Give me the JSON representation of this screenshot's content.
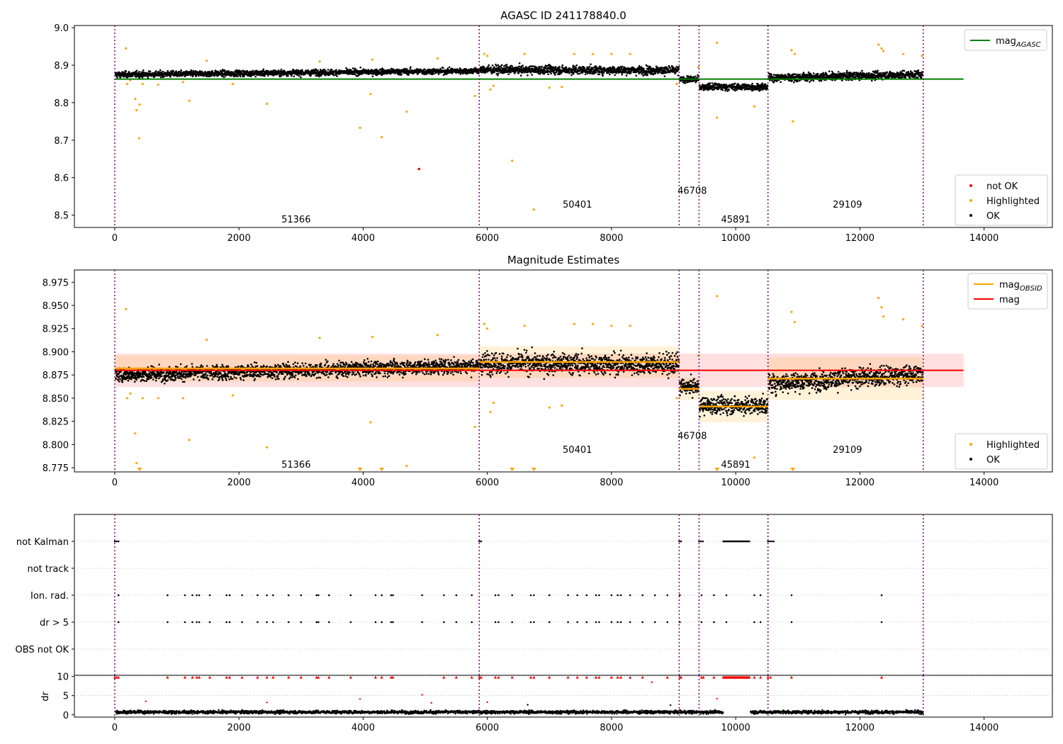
{
  "chart_data": [
    {
      "type": "scatter",
      "title": "AGASC ID 241178840.0",
      "xlabel": "",
      "ylabel": "",
      "xlim": [
        -650,
        15100
      ],
      "ylim": [
        8.467,
        9.006
      ],
      "xticks": [
        0,
        2000,
        4000,
        6000,
        8000,
        10000,
        12000,
        14000
      ],
      "yticks": [
        8.5,
        8.6,
        8.7,
        8.8,
        8.9,
        9.0
      ],
      "ytick_labels": [
        "8.5",
        "8.6",
        "8.7",
        "8.8",
        "8.9",
        "9.0"
      ],
      "obsid_boundaries": [
        0,
        5870,
        9090,
        9410,
        10520,
        13020
      ],
      "obsid_labels": [
        {
          "text": "51366",
          "x": 2920,
          "y": 8.49
        },
        {
          "text": "50401",
          "x": 7450,
          "y": 8.529
        },
        {
          "text": "46708",
          "x": 9300,
          "y": 8.566
        },
        {
          "text": "45891",
          "x": 10000,
          "y": 8.49
        },
        {
          "text": "29109",
          "x": 11800,
          "y": 8.529
        }
      ],
      "horizontal_lines": [
        {
          "name": "mag_AGASC",
          "y": 8.863,
          "x_range": [
            0,
            13670
          ],
          "color": "#008000"
        }
      ],
      "ok_segments": [
        {
          "x": [
            0,
            5870
          ],
          "mean": [
            8.875,
            8.885
          ],
          "spread": 0.012
        },
        {
          "x": [
            5870,
            9090
          ],
          "mean": [
            8.888,
            8.886
          ],
          "spread": 0.017
        },
        {
          "x": [
            9090,
            9410
          ],
          "mean": [
            8.862,
            8.862
          ],
          "spread": 0.013
        },
        {
          "x": [
            9410,
            10520
          ],
          "mean": [
            8.842,
            8.842
          ],
          "spread": 0.014
        },
        {
          "x": [
            10520,
            13020
          ],
          "mean": [
            8.866,
            8.876
          ],
          "spread": 0.016
        }
      ],
      "highlighted_points": [
        [
          180,
          8.945
        ],
        [
          200,
          8.85
        ],
        [
          250,
          8.86
        ],
        [
          330,
          8.81
        ],
        [
          350,
          8.78
        ],
        [
          390,
          8.705
        ],
        [
          400,
          8.795
        ],
        [
          450,
          8.85
        ],
        [
          700,
          8.848
        ],
        [
          1100,
          8.855
        ],
        [
          1200,
          8.805
        ],
        [
          1480,
          8.912
        ],
        [
          1900,
          8.85
        ],
        [
          2450,
          8.797
        ],
        [
          3300,
          8.91
        ],
        [
          3950,
          8.733
        ],
        [
          4120,
          8.823
        ],
        [
          4150,
          8.915
        ],
        [
          4300,
          8.708
        ],
        [
          4700,
          8.776
        ],
        [
          5200,
          8.918
        ],
        [
          5800,
          8.818
        ],
        [
          5950,
          8.93
        ],
        [
          6000,
          8.925
        ],
        [
          6050,
          8.835
        ],
        [
          6100,
          8.845
        ],
        [
          6400,
          8.645
        ],
        [
          6600,
          8.93
        ],
        [
          6750,
          8.515
        ],
        [
          7000,
          8.84
        ],
        [
          7200,
          8.842
        ],
        [
          7400,
          8.93
        ],
        [
          7700,
          8.93
        ],
        [
          8000,
          8.93
        ],
        [
          8300,
          8.93
        ],
        [
          9050,
          8.85
        ],
        [
          9400,
          8.895
        ],
        [
          9700,
          8.96
        ],
        [
          9700,
          8.76
        ],
        [
          10300,
          8.79
        ],
        [
          10900,
          8.94
        ],
        [
          10950,
          8.93
        ],
        [
          10920,
          8.75
        ],
        [
          12300,
          8.955
        ],
        [
          12350,
          8.945
        ],
        [
          12380,
          8.938
        ],
        [
          12700,
          8.93
        ],
        [
          13000,
          8.925
        ]
      ],
      "not_ok_points": [
        [
          4900,
          8.623
        ]
      ],
      "legend": [
        {
          "label": "mag",
          "sub": "AGASC",
          "color": "#008000",
          "kind": "line"
        },
        {
          "label": "not OK",
          "color": "#ff0000",
          "kind": "point"
        },
        {
          "label": "Highlighted",
          "color": "#ffa500",
          "kind": "point"
        },
        {
          "label": "OK",
          "color": "#000000",
          "kind": "point"
        }
      ]
    },
    {
      "type": "scatter",
      "title": "Magnitude Estimates",
      "xlabel": "",
      "ylabel": "",
      "xlim": [
        -650,
        15100
      ],
      "ylim": [
        8.7705,
        8.9882
      ],
      "xticks": [
        0,
        2000,
        4000,
        6000,
        8000,
        10000,
        12000,
        14000
      ],
      "yticks": [
        8.775,
        8.8,
        8.825,
        8.85,
        8.875,
        8.9,
        8.925,
        8.95,
        8.975
      ],
      "ytick_labels": [
        "8.775",
        "8.800",
        "8.825",
        "8.850",
        "8.875",
        "8.900",
        "8.925",
        "8.950",
        "8.975"
      ],
      "obsid_boundaries": [
        0,
        5870,
        9090,
        9410,
        10520,
        13020
      ],
      "obsid_labels": [
        {
          "text": "51366",
          "x": 2920,
          "y": 8.779
        },
        {
          "text": "50401",
          "x": 7450,
          "y": 8.795
        },
        {
          "text": "46708",
          "x": 9300,
          "y": 8.81
        },
        {
          "text": "45891",
          "x": 10000,
          "y": 8.779
        },
        {
          "text": "29109",
          "x": 11800,
          "y": 8.795
        }
      ],
      "mag": {
        "y": 8.88,
        "band": [
          8.862,
          8.898
        ],
        "x_range": [
          0,
          13670
        ],
        "color": "#ff0000"
      },
      "mag_obsid": [
        {
          "x": [
            0,
            5870
          ],
          "y": 8.882,
          "band": [
            8.868,
            8.896
          ]
        },
        {
          "x": [
            5870,
            9090
          ],
          "y": 8.889,
          "band": [
            8.872,
            8.906
          ]
        },
        {
          "x": [
            9090,
            9410
          ],
          "y": 8.86,
          "band": [
            8.848,
            8.872
          ]
        },
        {
          "x": [
            9410,
            10520
          ],
          "y": 8.841,
          "band": [
            8.824,
            8.858
          ]
        },
        {
          "x": [
            10520,
            13020
          ],
          "y": 8.871,
          "band": [
            8.848,
            8.894
          ]
        }
      ],
      "ok_segments": [
        {
          "x": [
            0,
            5870
          ],
          "mean": [
            8.875,
            8.885
          ],
          "spread": 0.012
        },
        {
          "x": [
            5870,
            9090
          ],
          "mean": [
            8.888,
            8.886
          ],
          "spread": 0.017
        },
        {
          "x": [
            9090,
            9410
          ],
          "mean": [
            8.862,
            8.862
          ],
          "spread": 0.013
        },
        {
          "x": [
            9410,
            10520
          ],
          "mean": [
            8.842,
            8.842
          ],
          "spread": 0.014
        },
        {
          "x": [
            10520,
            13020
          ],
          "mean": [
            8.866,
            8.876
          ],
          "spread": 0.016
        }
      ],
      "highlighted_points": [
        [
          180,
          8.946
        ],
        [
          200,
          8.85
        ],
        [
          250,
          8.855
        ],
        [
          330,
          8.812
        ],
        [
          350,
          8.78
        ],
        [
          450,
          8.85
        ],
        [
          700,
          8.85
        ],
        [
          1100,
          8.85
        ],
        [
          1200,
          8.805
        ],
        [
          1480,
          8.913
        ],
        [
          1900,
          8.853
        ],
        [
          2450,
          8.797
        ],
        [
          3300,
          8.915
        ],
        [
          4120,
          8.824
        ],
        [
          4150,
          8.916
        ],
        [
          4700,
          8.777
        ],
        [
          5200,
          8.918
        ],
        [
          5800,
          8.819
        ],
        [
          5950,
          8.93
        ],
        [
          6000,
          8.925
        ],
        [
          6050,
          8.835
        ],
        [
          6100,
          8.845
        ],
        [
          6600,
          8.928
        ],
        [
          7000,
          8.84
        ],
        [
          7200,
          8.842
        ],
        [
          7400,
          8.93
        ],
        [
          7700,
          8.93
        ],
        [
          8000,
          8.928
        ],
        [
          8300,
          8.928
        ],
        [
          9050,
          8.85
        ],
        [
          9400,
          8.896
        ],
        [
          9700,
          8.96
        ],
        [
          10300,
          8.786
        ],
        [
          10900,
          8.943
        ],
        [
          10950,
          8.932
        ],
        [
          12300,
          8.958
        ],
        [
          12350,
          8.948
        ],
        [
          12380,
          8.938
        ],
        [
          12700,
          8.935
        ],
        [
          13000,
          8.928
        ]
      ],
      "clipped_points_x": [
        400,
        3950,
        4300,
        6400,
        6750,
        9700,
        10920
      ],
      "legend": [
        {
          "label": "mag",
          "sub": "OBSID",
          "color": "#ffa500",
          "kind": "line"
        },
        {
          "label": "mag",
          "sub": "",
          "color": "#ff0000",
          "kind": "line"
        },
        {
          "label": "Highlighted",
          "color": "#ffa500",
          "kind": "point"
        },
        {
          "label": "OK",
          "color": "#000000",
          "kind": "point"
        }
      ]
    },
    {
      "type": "scatter",
      "title": "",
      "xlabel": "",
      "ylabel": "",
      "xlim": [
        -650,
        15100
      ],
      "flag_rows": [
        "not Kalman",
        "not track",
        "Ion. rad.",
        "dr > 5",
        "OBS not OK"
      ],
      "obsid_boundaries": [
        0,
        5870,
        9090,
        9410,
        10520,
        13020
      ],
      "flag_points": {
        "not Kalman": [
          0,
          30,
          60,
          5870,
          5900,
          9090,
          9120,
          9410,
          9440,
          9470,
          10520,
          10550,
          10580,
          10610
        ],
        "not Kalman_range": [
          9800,
          10230
        ],
        "not track": [],
        "Ion. rad.": [
          60,
          850,
          1130,
          1250,
          1320,
          1360,
          1530,
          1800,
          1850,
          2050,
          2300,
          2450,
          2550,
          2800,
          3000,
          3250,
          3280,
          3450,
          3800,
          4200,
          4300,
          4450,
          4480,
          4950,
          5300,
          5500,
          5750,
          6130,
          6180,
          6400,
          6700,
          6750,
          7000,
          7300,
          7450,
          7600,
          7750,
          7800,
          8000,
          8100,
          8150,
          8300,
          8500,
          8700,
          8900,
          9100,
          9450,
          9650,
          9850,
          10300,
          10400,
          10900,
          12350
        ],
        "dr > 5": [
          60,
          850,
          1130,
          1250,
          1320,
          1360,
          1530,
          1800,
          1850,
          2050,
          2300,
          2450,
          2550,
          2800,
          3000,
          3250,
          3280,
          3450,
          3800,
          4200,
          4300,
          4450,
          4480,
          4950,
          5300,
          5500,
          5750,
          6130,
          6180,
          6400,
          6700,
          6750,
          7000,
          7300,
          7450,
          7600,
          7750,
          7800,
          8000,
          8100,
          8150,
          8300,
          8500,
          8700,
          8900,
          9100,
          9450,
          9650,
          9850,
          10300,
          10400,
          10900,
          12350
        ],
        "OBS not OK": []
      }
    },
    {
      "type": "scatter",
      "title": "",
      "xlabel": "",
      "ylabel": "dr",
      "xlim": [
        -650,
        15100
      ],
      "ylim": [
        -0.6,
        10.3
      ],
      "xticks": [
        0,
        2000,
        4000,
        6000,
        8000,
        10000,
        12000,
        14000
      ],
      "yticks": [
        0,
        5,
        10
      ],
      "obsid_boundaries": [
        0,
        5870,
        9090,
        9410,
        10520,
        13020
      ],
      "dr_segments": [
        [
          20,
          9800
        ],
        [
          10240,
          13020
        ]
      ],
      "dr_clipped_x": [
        0,
        30,
        60,
        850,
        1130,
        1250,
        1320,
        1360,
        1530,
        1800,
        1850,
        2050,
        2300,
        2450,
        2550,
        2800,
        3000,
        3250,
        3280,
        3450,
        3800,
        4200,
        4300,
        4450,
        4480,
        5300,
        5500,
        5750,
        5870,
        5900,
        6130,
        6180,
        6400,
        6700,
        6750,
        7000,
        7300,
        7450,
        7600,
        7750,
        7800,
        8000,
        8100,
        8150,
        8300,
        8500,
        8900,
        9100,
        9120,
        9450,
        9480,
        9650,
        10300,
        10400,
        10520,
        10560,
        10900,
        12350
      ],
      "dr_clipped_range": [
        9800,
        10230
      ],
      "dr_red_points": [
        [
          500,
          3.5
        ],
        [
          2450,
          3.2
        ],
        [
          3950,
          4.1
        ],
        [
          4950,
          5.2
        ],
        [
          5100,
          3.1
        ],
        [
          6000,
          3.3
        ],
        [
          8650,
          8.5
        ],
        [
          9700,
          4.2
        ]
      ],
      "dr_black_outliers": [
        [
          6650,
          2.6
        ],
        [
          8950,
          2.5
        ]
      ]
    }
  ]
}
